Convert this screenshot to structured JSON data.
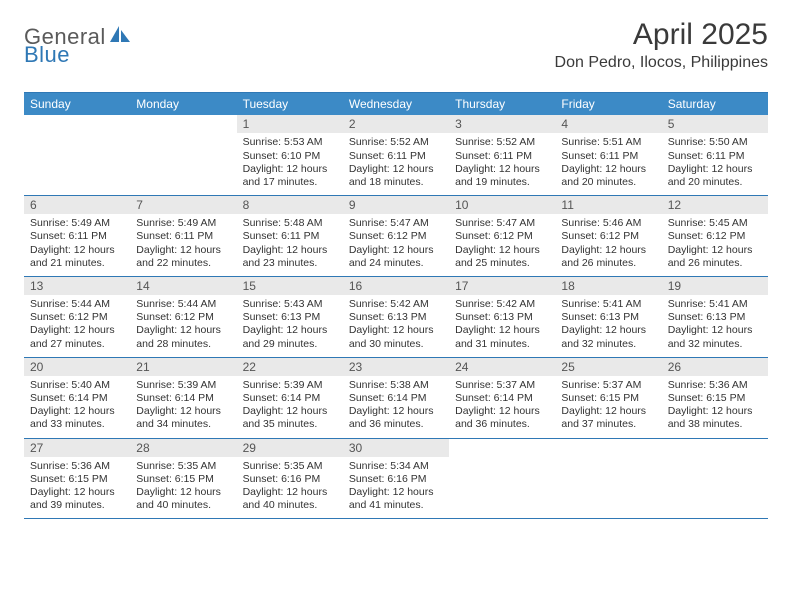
{
  "brand": {
    "name1": "General",
    "name2": "Blue",
    "logo_color": "#2f78b5"
  },
  "title": "April 2025",
  "location": "Don Pedro, Ilocos, Philippines",
  "colors": {
    "header_bg": "#3c8ac6",
    "header_text": "#ffffff",
    "rule": "#2f78b5",
    "daynum_bg": "#e9e9e9",
    "text": "#333333",
    "page_bg": "#ffffff"
  },
  "fonts": {
    "title_size": 30,
    "location_size": 16,
    "dow_size": 12,
    "body_size": 10.5
  },
  "days_of_week": [
    "Sunday",
    "Monday",
    "Tuesday",
    "Wednesday",
    "Thursday",
    "Friday",
    "Saturday"
  ],
  "weeks": [
    [
      {
        "n": null
      },
      {
        "n": null
      },
      {
        "n": 1,
        "sunrise": "5:53 AM",
        "sunset": "6:10 PM",
        "daylight": "12 hours and 17 minutes."
      },
      {
        "n": 2,
        "sunrise": "5:52 AM",
        "sunset": "6:11 PM",
        "daylight": "12 hours and 18 minutes."
      },
      {
        "n": 3,
        "sunrise": "5:52 AM",
        "sunset": "6:11 PM",
        "daylight": "12 hours and 19 minutes."
      },
      {
        "n": 4,
        "sunrise": "5:51 AM",
        "sunset": "6:11 PM",
        "daylight": "12 hours and 20 minutes."
      },
      {
        "n": 5,
        "sunrise": "5:50 AM",
        "sunset": "6:11 PM",
        "daylight": "12 hours and 20 minutes."
      }
    ],
    [
      {
        "n": 6,
        "sunrise": "5:49 AM",
        "sunset": "6:11 PM",
        "daylight": "12 hours and 21 minutes."
      },
      {
        "n": 7,
        "sunrise": "5:49 AM",
        "sunset": "6:11 PM",
        "daylight": "12 hours and 22 minutes."
      },
      {
        "n": 8,
        "sunrise": "5:48 AM",
        "sunset": "6:11 PM",
        "daylight": "12 hours and 23 minutes."
      },
      {
        "n": 9,
        "sunrise": "5:47 AM",
        "sunset": "6:12 PM",
        "daylight": "12 hours and 24 minutes."
      },
      {
        "n": 10,
        "sunrise": "5:47 AM",
        "sunset": "6:12 PM",
        "daylight": "12 hours and 25 minutes."
      },
      {
        "n": 11,
        "sunrise": "5:46 AM",
        "sunset": "6:12 PM",
        "daylight": "12 hours and 26 minutes."
      },
      {
        "n": 12,
        "sunrise": "5:45 AM",
        "sunset": "6:12 PM",
        "daylight": "12 hours and 26 minutes."
      }
    ],
    [
      {
        "n": 13,
        "sunrise": "5:44 AM",
        "sunset": "6:12 PM",
        "daylight": "12 hours and 27 minutes."
      },
      {
        "n": 14,
        "sunrise": "5:44 AM",
        "sunset": "6:12 PM",
        "daylight": "12 hours and 28 minutes."
      },
      {
        "n": 15,
        "sunrise": "5:43 AM",
        "sunset": "6:13 PM",
        "daylight": "12 hours and 29 minutes."
      },
      {
        "n": 16,
        "sunrise": "5:42 AM",
        "sunset": "6:13 PM",
        "daylight": "12 hours and 30 minutes."
      },
      {
        "n": 17,
        "sunrise": "5:42 AM",
        "sunset": "6:13 PM",
        "daylight": "12 hours and 31 minutes."
      },
      {
        "n": 18,
        "sunrise": "5:41 AM",
        "sunset": "6:13 PM",
        "daylight": "12 hours and 32 minutes."
      },
      {
        "n": 19,
        "sunrise": "5:41 AM",
        "sunset": "6:13 PM",
        "daylight": "12 hours and 32 minutes."
      }
    ],
    [
      {
        "n": 20,
        "sunrise": "5:40 AM",
        "sunset": "6:14 PM",
        "daylight": "12 hours and 33 minutes."
      },
      {
        "n": 21,
        "sunrise": "5:39 AM",
        "sunset": "6:14 PM",
        "daylight": "12 hours and 34 minutes."
      },
      {
        "n": 22,
        "sunrise": "5:39 AM",
        "sunset": "6:14 PM",
        "daylight": "12 hours and 35 minutes."
      },
      {
        "n": 23,
        "sunrise": "5:38 AM",
        "sunset": "6:14 PM",
        "daylight": "12 hours and 36 minutes."
      },
      {
        "n": 24,
        "sunrise": "5:37 AM",
        "sunset": "6:14 PM",
        "daylight": "12 hours and 36 minutes."
      },
      {
        "n": 25,
        "sunrise": "5:37 AM",
        "sunset": "6:15 PM",
        "daylight": "12 hours and 37 minutes."
      },
      {
        "n": 26,
        "sunrise": "5:36 AM",
        "sunset": "6:15 PM",
        "daylight": "12 hours and 38 minutes."
      }
    ],
    [
      {
        "n": 27,
        "sunrise": "5:36 AM",
        "sunset": "6:15 PM",
        "daylight": "12 hours and 39 minutes."
      },
      {
        "n": 28,
        "sunrise": "5:35 AM",
        "sunset": "6:15 PM",
        "daylight": "12 hours and 40 minutes."
      },
      {
        "n": 29,
        "sunrise": "5:35 AM",
        "sunset": "6:16 PM",
        "daylight": "12 hours and 40 minutes."
      },
      {
        "n": 30,
        "sunrise": "5:34 AM",
        "sunset": "6:16 PM",
        "daylight": "12 hours and 41 minutes."
      },
      {
        "n": null
      },
      {
        "n": null
      },
      {
        "n": null
      }
    ]
  ],
  "labels": {
    "sunrise": "Sunrise:",
    "sunset": "Sunset:",
    "daylight": "Daylight:"
  }
}
